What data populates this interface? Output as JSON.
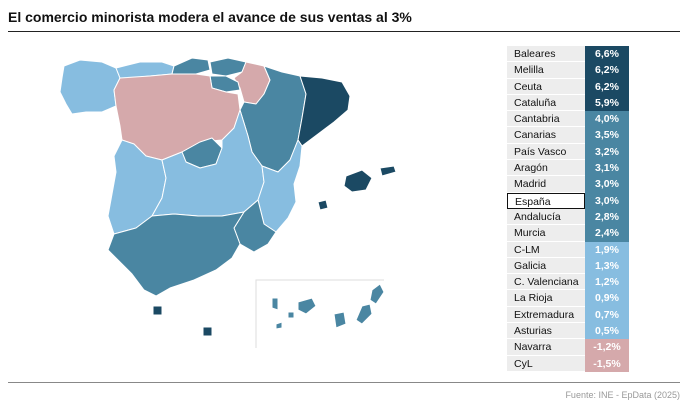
{
  "title": "El comercio minorista modera el avance de sus ventas al 3%",
  "source": "Fuente: INE - EpData (2025)",
  "colors": {
    "darkest": "#1b4963",
    "dark": "#4a86a2",
    "light": "#87bde0",
    "negative": "#d5a9ab",
    "highlight_border": "#111111"
  },
  "rows": [
    {
      "label": "Baleares",
      "value": "6,6%",
      "color": "#1b4963"
    },
    {
      "label": "Melilla",
      "value": "6,2%",
      "color": "#1b4963"
    },
    {
      "label": "Ceuta",
      "value": "6,2%",
      "color": "#1b4963"
    },
    {
      "label": "Cataluña",
      "value": "5,9%",
      "color": "#1b4963"
    },
    {
      "label": "Cantabria",
      "value": "4,0%",
      "color": "#4a86a2"
    },
    {
      "label": "Canarias",
      "value": "3,5%",
      "color": "#4a86a2"
    },
    {
      "label": "País Vasco",
      "value": "3,2%",
      "color": "#4a86a2"
    },
    {
      "label": "Aragón",
      "value": "3,1%",
      "color": "#4a86a2"
    },
    {
      "label": "Madrid",
      "value": "3,0%",
      "color": "#4a86a2"
    },
    {
      "label": "España",
      "value": "3,0%",
      "color": "#4a86a2"
    },
    {
      "label": "Andalucía",
      "value": "2,8%",
      "color": "#4a86a2"
    },
    {
      "label": "Murcia",
      "value": "2,4%",
      "color": "#4a86a2"
    },
    {
      "label": "C-LM",
      "value": "1,9%",
      "color": "#87bde0"
    },
    {
      "label": "Galicia",
      "value": "1,3%",
      "color": "#87bde0"
    },
    {
      "label": "C. Valenciana",
      "value": "1,2%",
      "color": "#87bde0"
    },
    {
      "label": "La Rioja",
      "value": "0,9%",
      "color": "#87bde0"
    },
    {
      "label": "Extremadura",
      "value": "0,7%",
      "color": "#87bde0"
    },
    {
      "label": "Asturias",
      "value": "0,5%",
      "color": "#87bde0"
    },
    {
      "label": "Navarra",
      "value": "-1,2%",
      "color": "#d5a9ab"
    },
    {
      "label": "CyL",
      "value": "-1,5%",
      "color": "#d5a9ab"
    }
  ]
}
